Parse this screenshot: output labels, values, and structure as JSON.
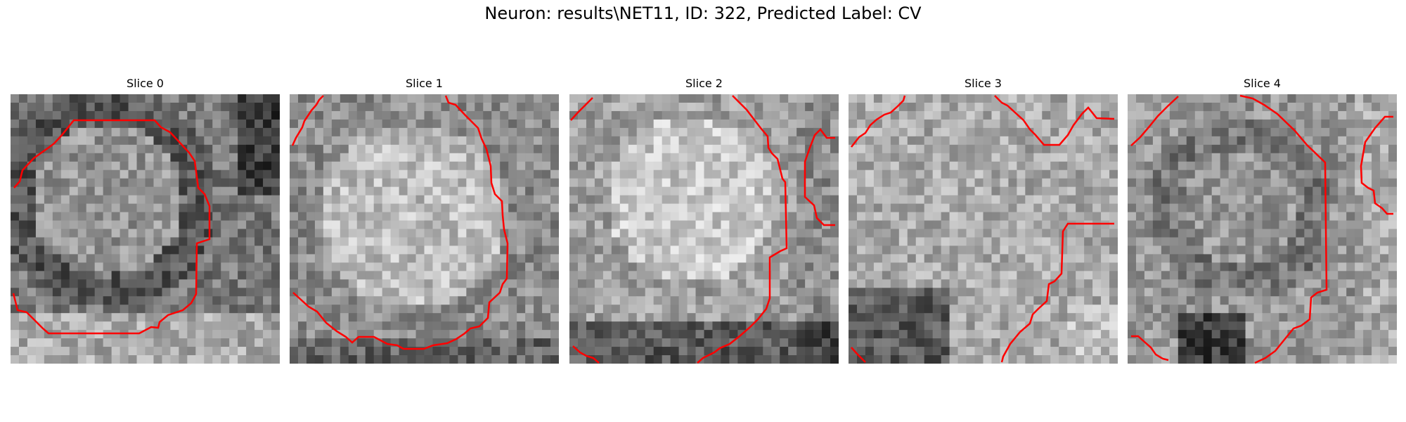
{
  "figure": {
    "title": "Neuron: results\\NET11, ID: 322, Predicted Label: CV",
    "slices": [
      {
        "title": "Slice 0",
        "theme": "ring"
      },
      {
        "title": "Slice 1",
        "theme": "bright_blob"
      },
      {
        "title": "Slice 2",
        "theme": "bright_center"
      },
      {
        "title": "Slice 3",
        "theme": "noisy_bright"
      },
      {
        "title": "Slice 4",
        "theme": "ring_dark"
      }
    ],
    "colors": {
      "contour": "#ff0000"
    }
  }
}
